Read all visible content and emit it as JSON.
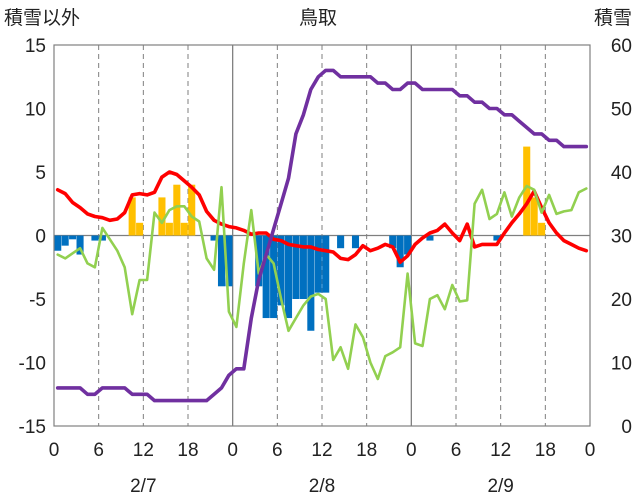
{
  "chart_data": {
    "type": "bar+line",
    "title": "鳥取",
    "left_axis_title": "積雪以外",
    "right_axis_title": "積雪",
    "y_left": {
      "min": -15,
      "max": 15,
      "ticks": [
        "15",
        "10",
        "5",
        "0",
        "-5",
        "-10",
        "-15"
      ],
      "tick_values": [
        15,
        10,
        5,
        0,
        -5,
        -10,
        -15
      ]
    },
    "y_right": {
      "min": 0,
      "max": 60,
      "ticks": [
        "60",
        "50",
        "40",
        "30",
        "20",
        "10",
        "0"
      ],
      "tick_values": [
        60,
        50,
        40,
        30,
        20,
        10,
        0
      ]
    },
    "x": {
      "min": 0,
      "max": 72,
      "unit": "hours",
      "tick_labels": [
        "0",
        "6",
        "12",
        "18",
        "0",
        "6",
        "12",
        "18",
        "0",
        "6",
        "12",
        "18",
        "0"
      ],
      "tick_values": [
        0,
        6,
        12,
        18,
        24,
        30,
        36,
        42,
        48,
        54,
        60,
        66,
        72
      ],
      "date_labels": [
        "2/7",
        "2/8",
        "2/9"
      ],
      "date_positions": [
        12,
        36,
        60
      ]
    },
    "grid": {
      "vertical_dashed_every_hours": 6,
      "solid_day_lines": [
        24,
        48
      ],
      "zero_line": true
    },
    "colors": {
      "positive_bar": "#FFC000",
      "negative_bar": "#0070C0",
      "red": "#FF0000",
      "green": "#92D050",
      "purple": "#7030A0"
    },
    "bars": [
      {
        "x": 0,
        "v": -1.2
      },
      {
        "x": 1,
        "v": -0.8
      },
      {
        "x": 2,
        "v": -0.3
      },
      {
        "x": 3,
        "v": -1.5
      },
      {
        "x": 5,
        "v": -0.4
      },
      {
        "x": 6,
        "v": -0.4
      },
      {
        "x": 10,
        "v": 3.0
      },
      {
        "x": 11,
        "v": 1.0
      },
      {
        "x": 14,
        "v": 3.0
      },
      {
        "x": 15,
        "v": 1.0
      },
      {
        "x": 16,
        "v": 4.0
      },
      {
        "x": 17,
        "v": 1.0
      },
      {
        "x": 18,
        "v": 4.0
      },
      {
        "x": 21,
        "v": -0.4
      },
      {
        "x": 22,
        "v": -4.0
      },
      {
        "x": 23,
        "v": -4.0
      },
      {
        "x": 27,
        "v": -4.0
      },
      {
        "x": 28,
        "v": -6.5
      },
      {
        "x": 29,
        "v": -6.5
      },
      {
        "x": 30,
        "v": -5.5
      },
      {
        "x": 31,
        "v": -6.5
      },
      {
        "x": 32,
        "v": -5.0
      },
      {
        "x": 33,
        "v": -5.0
      },
      {
        "x": 34,
        "v": -7.5
      },
      {
        "x": 35,
        "v": -4.5
      },
      {
        "x": 36,
        "v": -4.5
      },
      {
        "x": 38,
        "v": -1.0
      },
      {
        "x": 40,
        "v": -1.0
      },
      {
        "x": 45,
        "v": -1.0
      },
      {
        "x": 46,
        "v": -2.5
      },
      {
        "x": 47,
        "v": -1.5
      },
      {
        "x": 50,
        "v": -0.4
      },
      {
        "x": 59,
        "v": -0.4
      },
      {
        "x": 63,
        "v": 7.0
      },
      {
        "x": 64,
        "v": 3.0
      },
      {
        "x": 65,
        "v": 1.0
      }
    ],
    "series": [
      {
        "color": "#FF0000",
        "axis": "left",
        "points": [
          [
            0,
            3.6
          ],
          [
            1,
            3.3
          ],
          [
            2,
            2.6
          ],
          [
            3,
            2.2
          ],
          [
            4,
            1.7
          ],
          [
            5,
            1.5
          ],
          [
            6,
            1.4
          ],
          [
            7,
            1.2
          ],
          [
            8,
            1.3
          ],
          [
            9,
            1.8
          ],
          [
            10,
            3.2
          ],
          [
            11,
            3.3
          ],
          [
            12,
            3.2
          ],
          [
            13,
            3.4
          ],
          [
            14,
            4.6
          ],
          [
            15,
            5.0
          ],
          [
            16,
            4.8
          ],
          [
            17,
            4.3
          ],
          [
            18,
            3.8
          ],
          [
            19,
            3.2
          ],
          [
            20,
            1.9
          ],
          [
            21,
            1.2
          ],
          [
            22,
            0.9
          ],
          [
            23,
            0.7
          ],
          [
            24,
            0.6
          ],
          [
            25,
            0.4
          ],
          [
            26,
            0.1
          ],
          [
            27,
            0.2
          ],
          [
            28,
            0.2
          ],
          [
            29,
            -0.3
          ],
          [
            30,
            -0.4
          ],
          [
            31,
            -0.7
          ],
          [
            32,
            -0.8
          ],
          [
            33,
            -0.9
          ],
          [
            34,
            -0.9
          ],
          [
            35,
            -1.1
          ],
          [
            36,
            -1.2
          ],
          [
            37,
            -1.3
          ],
          [
            38,
            -1.8
          ],
          [
            39,
            -1.9
          ],
          [
            40,
            -1.5
          ],
          [
            41,
            -0.8
          ],
          [
            42,
            -1.2
          ],
          [
            43,
            -1.0
          ],
          [
            44,
            -0.7
          ],
          [
            45,
            -0.9
          ],
          [
            46,
            -2.1
          ],
          [
            47,
            -1.6
          ],
          [
            48,
            -0.7
          ],
          [
            49,
            -0.2
          ],
          [
            50,
            0.2
          ],
          [
            51,
            0.4
          ],
          [
            52,
            0.9
          ],
          [
            53,
            0.2
          ],
          [
            54,
            -0.4
          ],
          [
            55,
            0.9
          ],
          [
            56,
            -0.9
          ],
          [
            57,
            -0.7
          ],
          [
            58,
            -0.7
          ],
          [
            59,
            -0.7
          ],
          [
            60,
            0.2
          ],
          [
            61,
            1.0
          ],
          [
            62,
            1.7
          ],
          [
            63,
            2.5
          ],
          [
            64,
            3.5
          ],
          [
            65,
            2.2
          ],
          [
            66,
            1.0
          ],
          [
            67,
            0.2
          ],
          [
            68,
            -0.4
          ],
          [
            69,
            -0.7
          ],
          [
            70,
            -1.0
          ],
          [
            71,
            -1.2
          ]
        ]
      },
      {
        "color": "#92D050",
        "axis": "left",
        "points": [
          [
            0,
            -1.5
          ],
          [
            1,
            -1.8
          ],
          [
            2,
            -1.4
          ],
          [
            3,
            -1.0
          ],
          [
            4,
            -2.2
          ],
          [
            5,
            -2.5
          ],
          [
            6,
            0.6
          ],
          [
            8,
            -1.2
          ],
          [
            9,
            -2.5
          ],
          [
            10,
            -6.2
          ],
          [
            11,
            -3.5
          ],
          [
            12,
            -3.5
          ],
          [
            13,
            1.8
          ],
          [
            14,
            1.0
          ],
          [
            15,
            2.0
          ],
          [
            16,
            2.3
          ],
          [
            17,
            2.3
          ],
          [
            18,
            1.5
          ],
          [
            19,
            1.1
          ],
          [
            20,
            -1.8
          ],
          [
            21,
            -2.7
          ],
          [
            22,
            3.8
          ],
          [
            23,
            -6.0
          ],
          [
            24,
            -7.2
          ],
          [
            25,
            -2.2
          ],
          [
            26,
            2.0
          ],
          [
            27,
            -3.0
          ],
          [
            28,
            -1.5
          ],
          [
            29,
            -2.2
          ],
          [
            30,
            -5.0
          ],
          [
            31,
            -7.5
          ],
          [
            32,
            -6.5
          ],
          [
            33,
            -5.5
          ],
          [
            34,
            -4.8
          ],
          [
            35,
            -4.6
          ],
          [
            36,
            -5.0
          ],
          [
            37,
            -9.8
          ],
          [
            38,
            -8.8
          ],
          [
            39,
            -10.5
          ],
          [
            40,
            -7.0
          ],
          [
            41,
            -8.0
          ],
          [
            42,
            -10.0
          ],
          [
            43,
            -11.3
          ],
          [
            44,
            -9.5
          ],
          [
            45,
            -9.2
          ],
          [
            46,
            -8.8
          ],
          [
            47,
            -3.0
          ],
          [
            48,
            -8.5
          ],
          [
            49,
            -8.7
          ],
          [
            50,
            -5.0
          ],
          [
            51,
            -4.7
          ],
          [
            52,
            -5.8
          ],
          [
            53,
            -3.9
          ],
          [
            54,
            -5.2
          ],
          [
            55,
            -5.1
          ],
          [
            56,
            2.5
          ],
          [
            57,
            3.6
          ],
          [
            58,
            1.3
          ],
          [
            59,
            1.7
          ],
          [
            60,
            3.4
          ],
          [
            61,
            1.5
          ],
          [
            62,
            3.0
          ],
          [
            63,
            3.9
          ],
          [
            64,
            3.6
          ],
          [
            65,
            1.8
          ],
          [
            66,
            3.2
          ],
          [
            67,
            1.7
          ],
          [
            68,
            1.9
          ],
          [
            69,
            2.0
          ],
          [
            70,
            3.4
          ],
          [
            71,
            3.7
          ]
        ]
      },
      {
        "color": "#7030A0",
        "axis": "right",
        "points": [
          [
            0,
            6
          ],
          [
            1,
            6
          ],
          [
            2,
            6
          ],
          [
            3,
            6
          ],
          [
            4,
            5
          ],
          [
            5,
            5
          ],
          [
            6,
            6
          ],
          [
            7,
            6
          ],
          [
            8,
            6
          ],
          [
            9,
            6
          ],
          [
            10,
            5
          ],
          [
            11,
            5
          ],
          [
            12,
            5
          ],
          [
            13,
            4
          ],
          [
            14,
            4
          ],
          [
            15,
            4
          ],
          [
            16,
            4
          ],
          [
            17,
            4
          ],
          [
            18,
            4
          ],
          [
            19,
            4
          ],
          [
            20,
            4
          ],
          [
            21,
            5
          ],
          [
            22,
            6
          ],
          [
            23,
            8
          ],
          [
            24,
            9
          ],
          [
            25,
            9
          ],
          [
            26,
            17
          ],
          [
            27,
            23
          ],
          [
            28,
            27
          ],
          [
            29,
            31
          ],
          [
            30,
            35
          ],
          [
            31,
            39
          ],
          [
            32,
            46
          ],
          [
            33,
            49
          ],
          [
            34,
            53
          ],
          [
            35,
            55
          ],
          [
            36,
            56
          ],
          [
            37,
            56
          ],
          [
            38,
            55
          ],
          [
            39,
            55
          ],
          [
            40,
            55
          ],
          [
            41,
            55
          ],
          [
            42,
            55
          ],
          [
            43,
            54
          ],
          [
            44,
            54
          ],
          [
            45,
            53
          ],
          [
            46,
            53
          ],
          [
            47,
            54
          ],
          [
            48,
            54
          ],
          [
            49,
            53
          ],
          [
            50,
            53
          ],
          [
            51,
            53
          ],
          [
            52,
            53
          ],
          [
            53,
            53
          ],
          [
            54,
            52
          ],
          [
            55,
            52
          ],
          [
            56,
            51
          ],
          [
            57,
            51
          ],
          [
            58,
            50
          ],
          [
            59,
            50
          ],
          [
            60,
            49
          ],
          [
            61,
            49
          ],
          [
            62,
            48
          ],
          [
            63,
            47
          ],
          [
            64,
            46
          ],
          [
            65,
            46
          ],
          [
            66,
            45
          ],
          [
            67,
            45
          ],
          [
            68,
            44
          ],
          [
            69,
            44
          ],
          [
            70,
            44
          ],
          [
            71,
            44
          ]
        ]
      }
    ]
  }
}
